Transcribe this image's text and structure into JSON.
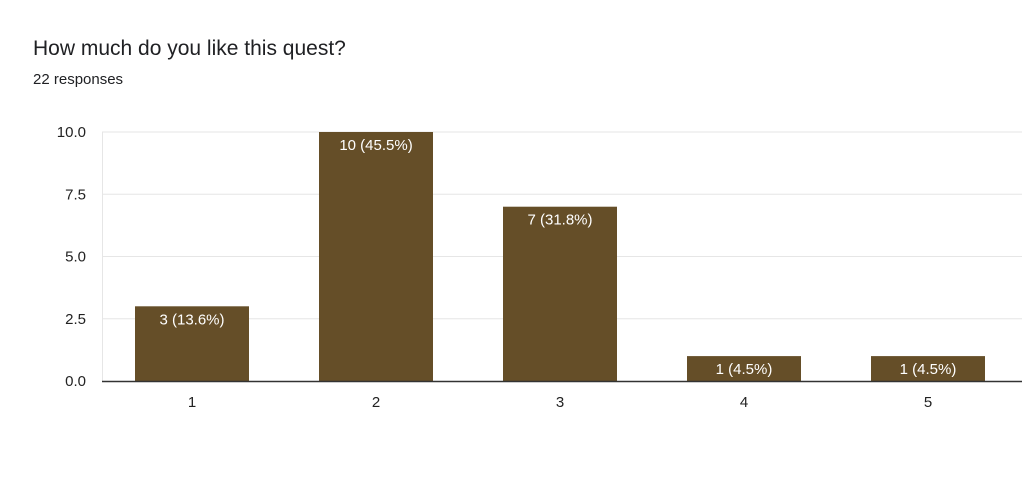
{
  "header": {
    "title": "How much do you like this quest?",
    "responses": "22 responses"
  },
  "chart_data": {
    "type": "bar",
    "categories": [
      "1",
      "2",
      "3",
      "4",
      "5"
    ],
    "values": [
      3,
      10,
      7,
      1,
      1
    ],
    "data_labels": [
      "3 (13.6%)",
      "10 (45.5%)",
      "7 (31.8%)",
      "1 (4.5%)",
      "1 (4.5%)"
    ],
    "y_ticks": [
      0,
      2.5,
      5,
      7.5,
      10
    ],
    "y_tick_labels": [
      "0.0",
      "2.5",
      "5.0",
      "7.5",
      "10.0"
    ],
    "ylim": [
      0,
      10
    ],
    "grid": true,
    "legend": "none",
    "bar_color": "#654e28",
    "grid_color": "#e6e6e6",
    "axis_color": "#333333"
  }
}
